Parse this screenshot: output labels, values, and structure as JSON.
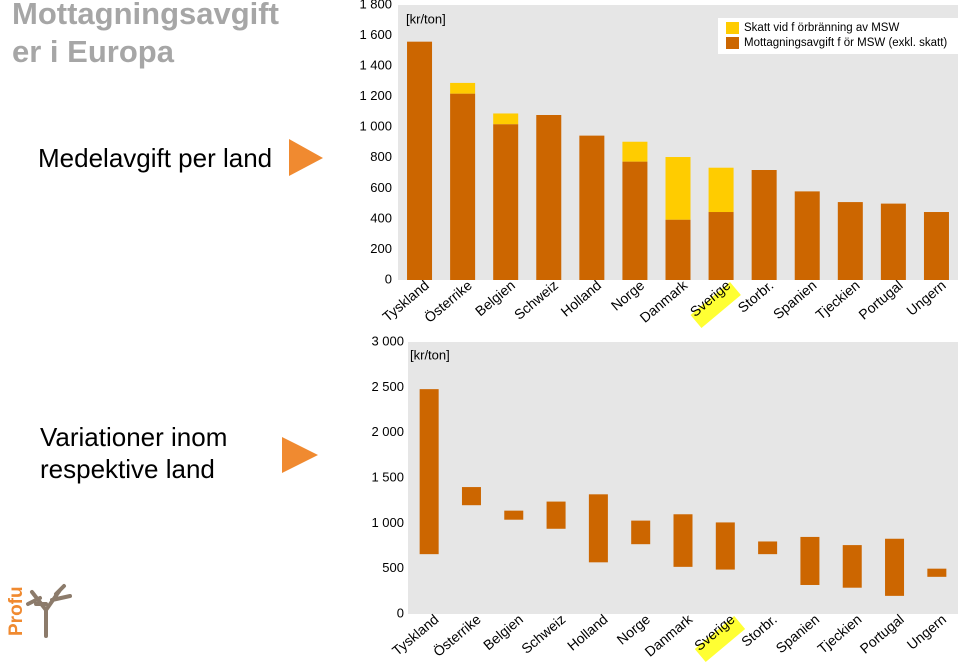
{
  "slide": {
    "title_lines": [
      "Mottagningsavgift",
      "er i  Europa"
    ],
    "label_top": "Medelavgift per land",
    "label_bottom_lines": [
      "Variationer inom",
      "respektive land"
    ],
    "logo": "Profu"
  },
  "chart_data": [
    {
      "type": "stacked_bar",
      "unit_label": "[kr/ton]",
      "categories": [
        "Tyskland",
        "Österrike",
        "Belgien",
        "Schweiz",
        "Holland",
        "Norge",
        "Danmark",
        "Sverige",
        "Storbr.",
        "Spanien",
        "Tjeckien",
        "Portugal",
        "Ungern"
      ],
      "series": [
        {
          "name": "Mottagningsavgift f ör MSW (exkl. skatt)",
          "color": "#cc6600",
          "values": [
            1560,
            1220,
            1020,
            1080,
            945,
            775,
            395,
            445,
            720,
            580,
            510,
            500,
            445
          ]
        },
        {
          "name": "Skatt vid f örbränning av MSW",
          "color": "#ffcc00",
          "values": [
            0,
            70,
            70,
            0,
            0,
            130,
            410,
            290,
            0,
            0,
            0,
            0,
            0
          ]
        }
      ],
      "legend_order": [
        1,
        0
      ],
      "ylim": [
        0,
        1800
      ],
      "yticks": [
        0,
        200,
        400,
        600,
        800,
        {
          "value": 1000,
          "label": "1 000"
        },
        {
          "value": 1200,
          "label": "1 200"
        },
        {
          "value": 1400,
          "label": "1 400"
        },
        {
          "value": 1600,
          "label": "1 600"
        },
        {
          "value": 1800,
          "label": "1 800"
        }
      ],
      "grid": false,
      "plot_background": "#e6e6e6",
      "highlight_index": 7,
      "highlight_color": "#ffff33"
    },
    {
      "type": "floating_bar",
      "unit_label": "[kr/ton]",
      "categories": [
        "Tyskland",
        "Österrike",
        "Belgien",
        "Schweiz",
        "Holland",
        "Norge",
        "Danmark",
        "Sverige",
        "Storbr.",
        "Spanien",
        "Tjeckien",
        "Portugal",
        "Ungern"
      ],
      "color": "#cc6600",
      "low": [
        660,
        1200,
        1040,
        940,
        570,
        770,
        520,
        490,
        660,
        320,
        290,
        200,
        410
      ],
      "high": [
        2480,
        1400,
        1140,
        1240,
        1320,
        1030,
        1100,
        1010,
        800,
        850,
        760,
        830,
        500
      ],
      "ylim": [
        0,
        3000
      ],
      "yticks": [
        0,
        500,
        {
          "value": 1000,
          "label": "1 000"
        },
        {
          "value": 1500,
          "label": "1 500"
        },
        {
          "value": 2000,
          "label": "2 000"
        },
        {
          "value": 2500,
          "label": "2 500"
        },
        {
          "value": 3000,
          "label": "3 000"
        }
      ],
      "grid": false,
      "plot_background": "#e6e6e6",
      "highlight_index": 7,
      "highlight_color": "#ffff33"
    }
  ]
}
